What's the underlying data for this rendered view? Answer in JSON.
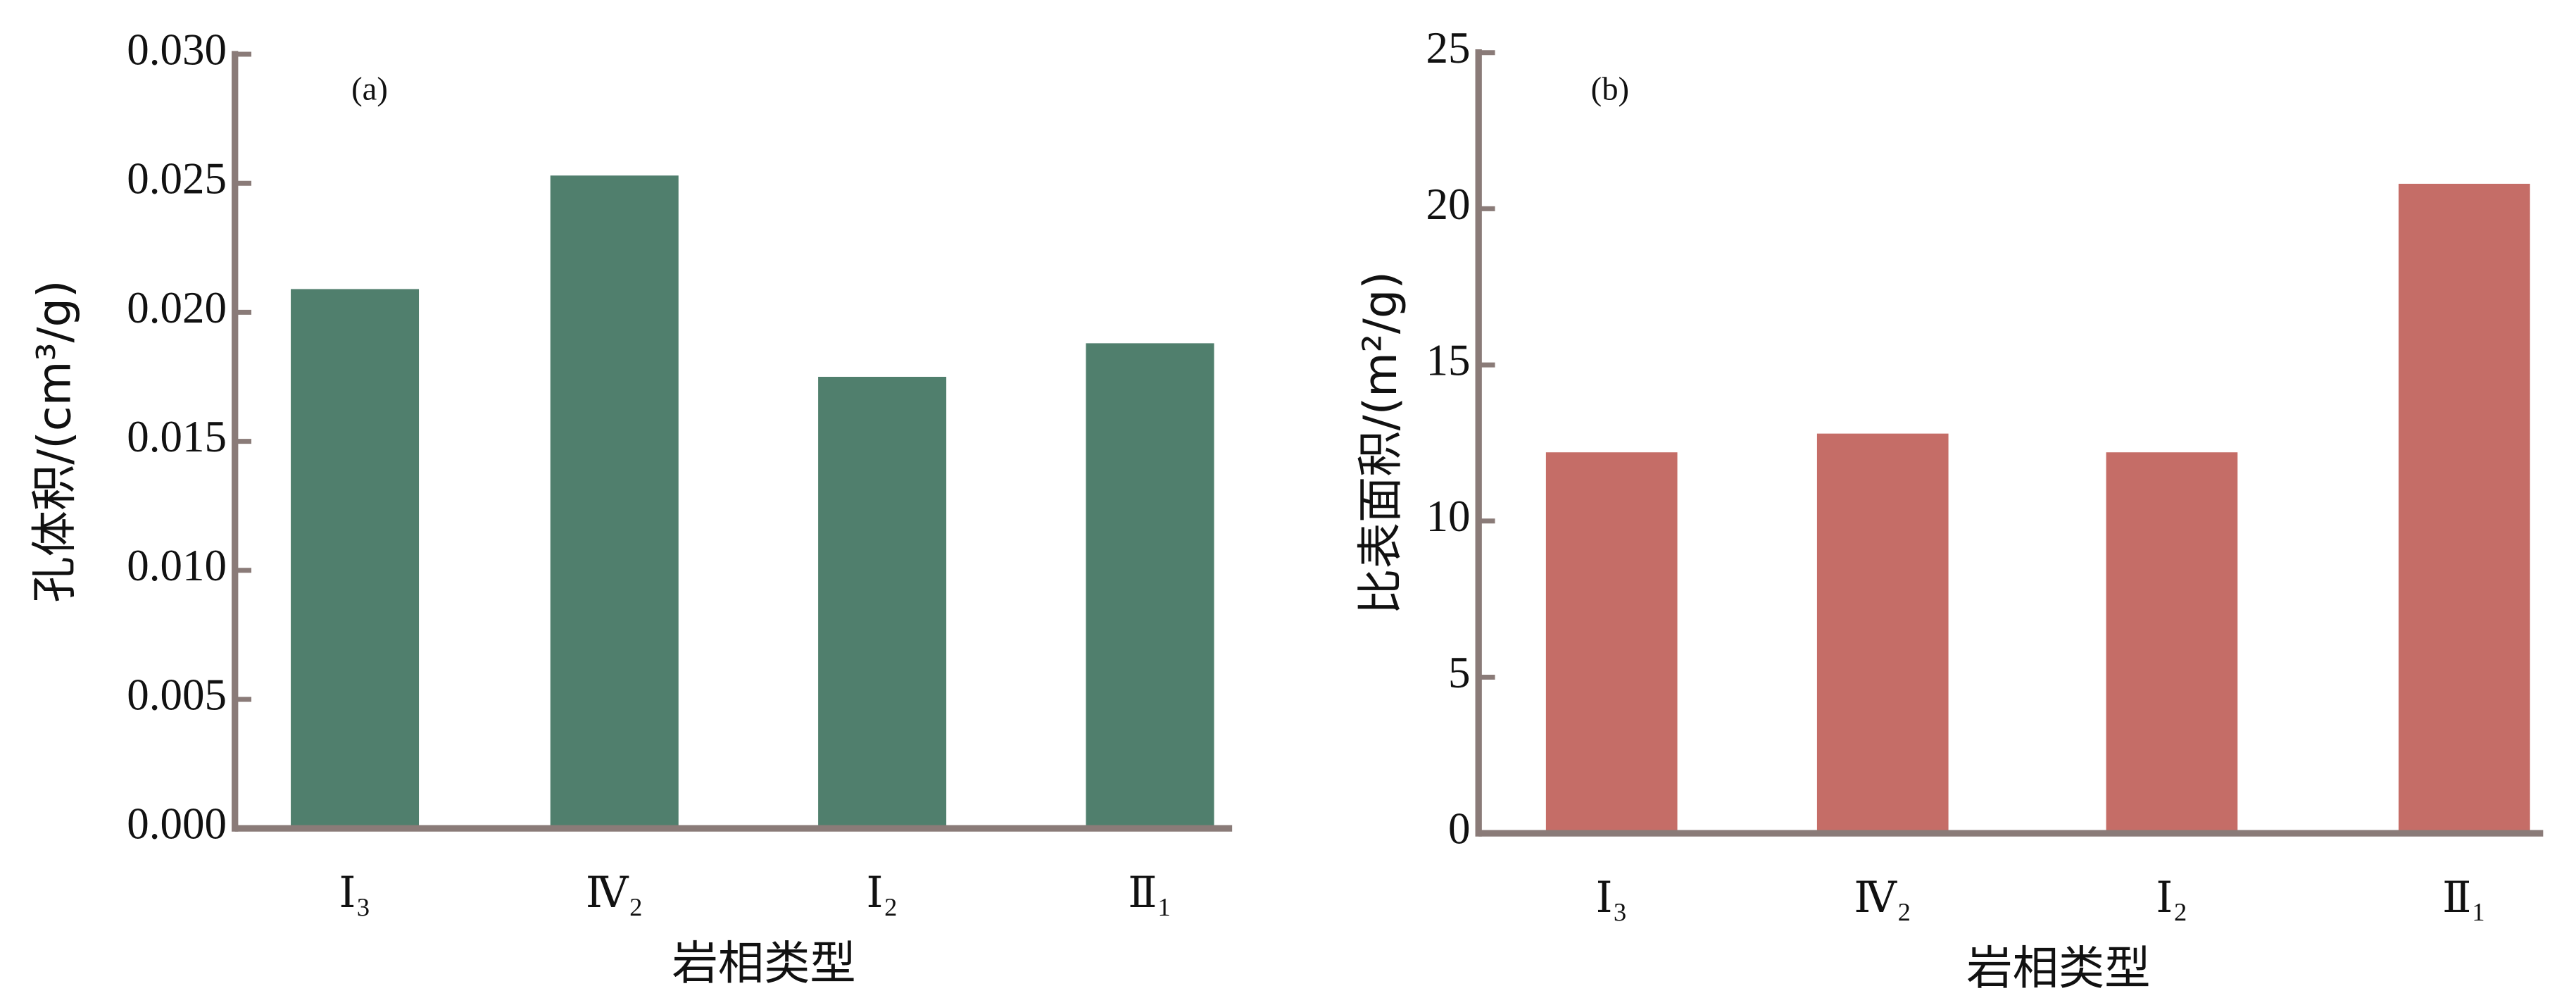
{
  "chart_data": [
    {
      "type": "bar",
      "annotation": "(a)",
      "ylabel": "孔体积/(cm³/g)",
      "xlabel": "岩相类型",
      "categories": [
        "Ⅰ₃",
        "Ⅳ₂",
        "Ⅰ₂",
        "Ⅱ₁"
      ],
      "values": [
        0.0209,
        0.0253,
        0.0175,
        0.0188
      ],
      "color": "#507f6d",
      "ylim": [
        0,
        0.03
      ],
      "yticks": [
        {
          "value": 0,
          "label": "0.000"
        },
        {
          "value": 0.005,
          "label": "0.005"
        },
        {
          "value": 0.01,
          "label": "0.010"
        },
        {
          "value": 0.015,
          "label": "0.015"
        },
        {
          "value": 0.02,
          "label": "0.020"
        },
        {
          "value": 0.025,
          "label": "0.025"
        },
        {
          "value": 0.03,
          "label": "0.030"
        }
      ]
    },
    {
      "type": "bar",
      "annotation": "(b)",
      "ylabel": "比表面积/(m²/g)",
      "xlabel": "岩相类型",
      "categories": [
        "Ⅰ₃",
        "Ⅳ₂",
        "Ⅰ₂",
        "Ⅱ₁"
      ],
      "values": [
        12.2,
        12.8,
        12.2,
        20.8
      ],
      "color": "#c56d67",
      "ylim": [
        0,
        25
      ],
      "yticks": [
        0,
        5,
        10,
        15,
        20,
        25
      ]
    }
  ]
}
